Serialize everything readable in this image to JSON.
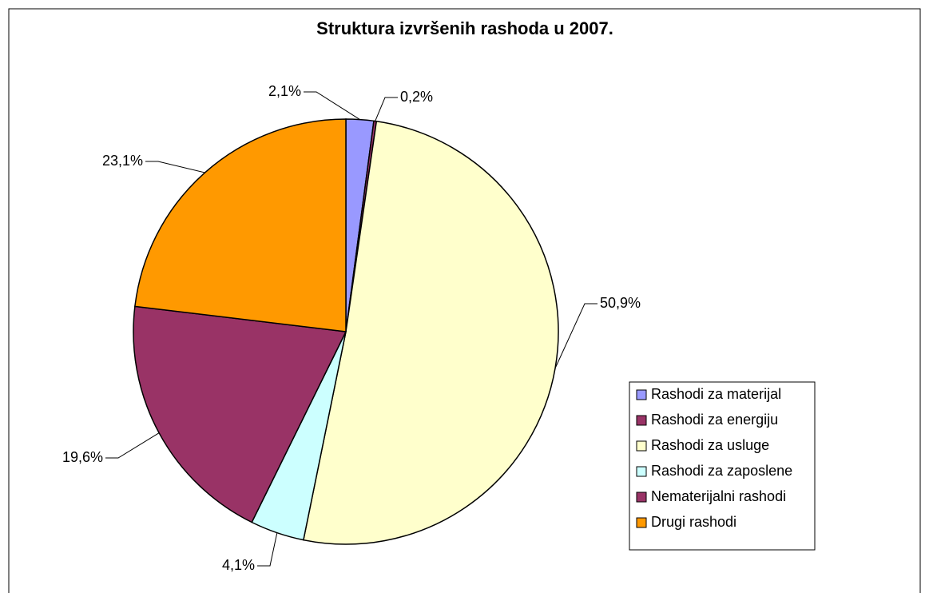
{
  "chart_data": {
    "type": "pie",
    "title": "Struktura izvršenih rashoda u 2007.",
    "categories": [
      "Rashodi za materijal",
      "Rashodi za energiju",
      "Rashodi za usluge",
      "Rashodi za zaposlene",
      "Nematerijalni rashodi",
      "Drugi rashodi"
    ],
    "values": [
      2.1,
      0.2,
      50.9,
      4.1,
      19.6,
      23.1
    ],
    "value_labels": [
      "2,1%",
      "0,2%",
      "50,9%",
      "4,1%",
      "19,6%",
      "23,1%"
    ],
    "colors": [
      "#9999ff",
      "#993366",
      "#ffffcc",
      "#ccffff",
      "#993366",
      "#ff9900"
    ],
    "legend": "right"
  }
}
